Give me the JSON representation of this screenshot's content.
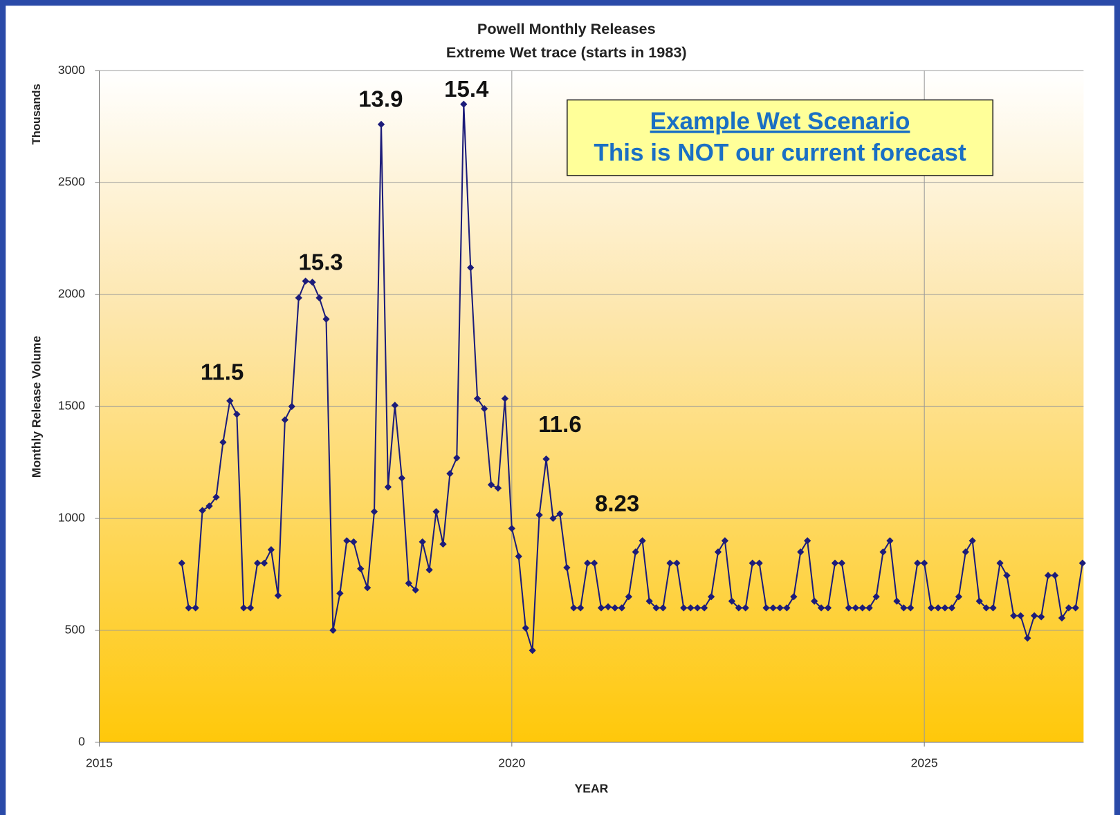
{
  "chart_data": {
    "type": "line",
    "title": "Powell Monthly Releases",
    "subtitle": "Extreme Wet trace (starts in 1983)",
    "xlabel": "YEAR",
    "ylabel": "Monthly Release Volume",
    "yunit": "Thousands",
    "box_lines": [
      "Example Wet Scenario",
      "This is NOT our current forecast"
    ],
    "annotations": [
      "11.5",
      "15.3",
      "13.9",
      "15.4",
      "11.6",
      "8.23"
    ],
    "xlim": [
      2015,
      2026.93
    ],
    "xticks": [
      2015,
      2020,
      2025
    ],
    "ylim": [
      0,
      3000
    ],
    "yticks": [
      0,
      500,
      1000,
      1500,
      2000,
      2500,
      3000
    ],
    "grid": true,
    "series": [
      {
        "name": "Monthly Release Volume",
        "color": "#1c1c7a",
        "x": [
          2016,
          2016.083,
          2016.167,
          2016.25,
          2016.333,
          2016.417,
          2016.5,
          2016.583,
          2016.667,
          2016.75,
          2016.833,
          2016.917,
          2017,
          2017.083,
          2017.167,
          2017.25,
          2017.333,
          2017.417,
          2017.5,
          2017.583,
          2017.667,
          2017.75,
          2017.833,
          2017.917,
          2018,
          2018.083,
          2018.167,
          2018.25,
          2018.333,
          2018.417,
          2018.5,
          2018.583,
          2018.667,
          2018.75,
          2018.833,
          2018.917,
          2019,
          2019.083,
          2019.167,
          2019.25,
          2019.333,
          2019.417,
          2019.5,
          2019.583,
          2019.667,
          2019.75,
          2019.833,
          2019.917,
          2020,
          2020.083,
          2020.167,
          2020.25,
          2020.333,
          2020.417,
          2020.5,
          2020.583,
          2020.667,
          2020.75,
          2020.833,
          2020.917,
          2021,
          2021.083,
          2021.167,
          2021.25,
          2021.333,
          2021.417,
          2021.5,
          2021.583,
          2021.667,
          2021.75,
          2021.833,
          2021.917,
          2022,
          2022.083,
          2022.167,
          2022.25,
          2022.333,
          2022.417,
          2022.5,
          2022.583,
          2022.667,
          2022.75,
          2022.833,
          2022.917,
          2023,
          2023.083,
          2023.167,
          2023.25,
          2023.333,
          2023.417,
          2023.5,
          2023.583,
          2023.667,
          2023.75,
          2023.833,
          2023.917,
          2024,
          2024.083,
          2024.167,
          2024.25,
          2024.333,
          2024.417,
          2024.5,
          2024.583,
          2024.667,
          2024.75,
          2024.833,
          2024.917,
          2025,
          2025.083,
          2025.167,
          2025.25,
          2025.333,
          2025.417,
          2025.5,
          2025.583,
          2025.667,
          2025.75,
          2025.833,
          2025.917,
          2026,
          2026.083,
          2026.167,
          2026.25,
          2026.333,
          2026.417,
          2026.5,
          2026.583,
          2026.667,
          2026.75,
          2026.833,
          2026.917
        ],
        "values": [
          800,
          600,
          600,
          1035,
          1055,
          1095,
          1340,
          1525,
          1465,
          600,
          600,
          800,
          800,
          860,
          655,
          1440,
          1500,
          1985,
          2060,
          2055,
          1985,
          1890,
          500,
          665,
          900,
          895,
          775,
          690,
          1030,
          2760,
          1140,
          1505,
          1180,
          710,
          680,
          895,
          770,
          1030,
          885,
          1200,
          1270,
          2850,
          2120,
          1535,
          1490,
          1150,
          1135,
          1535,
          955,
          830,
          510,
          410,
          1015,
          1265,
          1000,
          1020,
          780,
          600,
          600,
          800,
          800,
          600,
          605,
          600,
          600,
          650,
          850,
          900,
          630,
          600,
          600,
          800,
          800,
          600,
          600,
          600,
          600,
          650,
          850,
          900,
          630,
          600,
          600,
          800,
          800,
          600,
          600,
          600,
          600,
          650,
          850,
          900,
          630,
          600,
          600,
          800,
          800,
          600,
          600,
          600,
          600,
          650,
          850,
          900,
          630,
          600,
          600,
          800,
          800,
          600,
          600,
          600,
          600,
          650,
          850,
          900,
          630,
          600,
          600,
          800,
          745,
          565,
          565,
          465,
          565,
          560,
          745,
          745,
          555,
          600,
          600,
          800
        ]
      }
    ]
  }
}
